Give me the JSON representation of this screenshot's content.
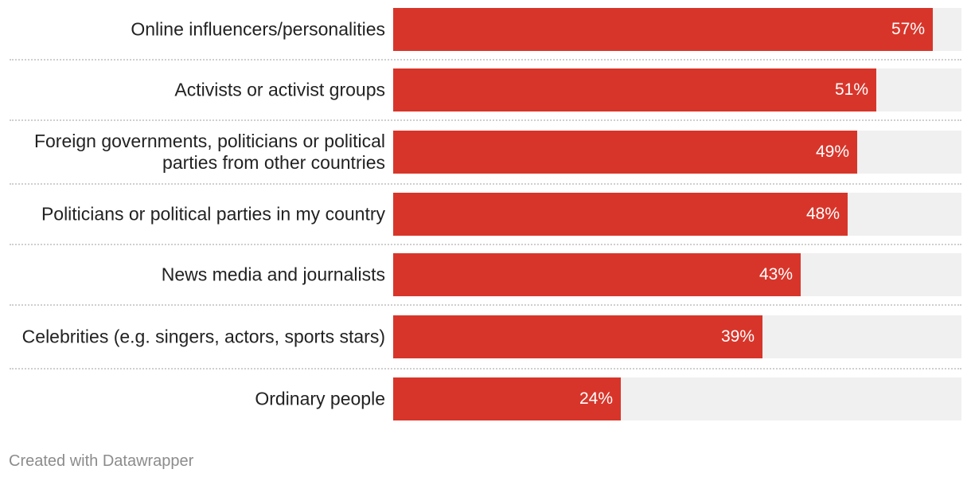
{
  "chart_data": {
    "type": "bar",
    "orientation": "horizontal",
    "categories": [
      "Online influencers/personalities",
      "Activists or activist groups",
      "Foreign governments, politicians or political parties from other countries",
      "Politicians or political parties in my country",
      "News media and journalists",
      "Celebrities (e.g. singers, actors, sports stars)",
      "Ordinary people"
    ],
    "values": [
      57,
      51,
      49,
      48,
      43,
      39,
      24
    ],
    "value_labels": [
      "57%",
      "51%",
      "49%",
      "48%",
      "43%",
      "39%",
      "24%"
    ],
    "unit": "%",
    "xlim": [
      0,
      60
    ],
    "grid": false,
    "bar_color": "#d8352a",
    "track_color": "#f0f0f0"
  },
  "footer": {
    "credit": "Created with Datawrapper"
  }
}
